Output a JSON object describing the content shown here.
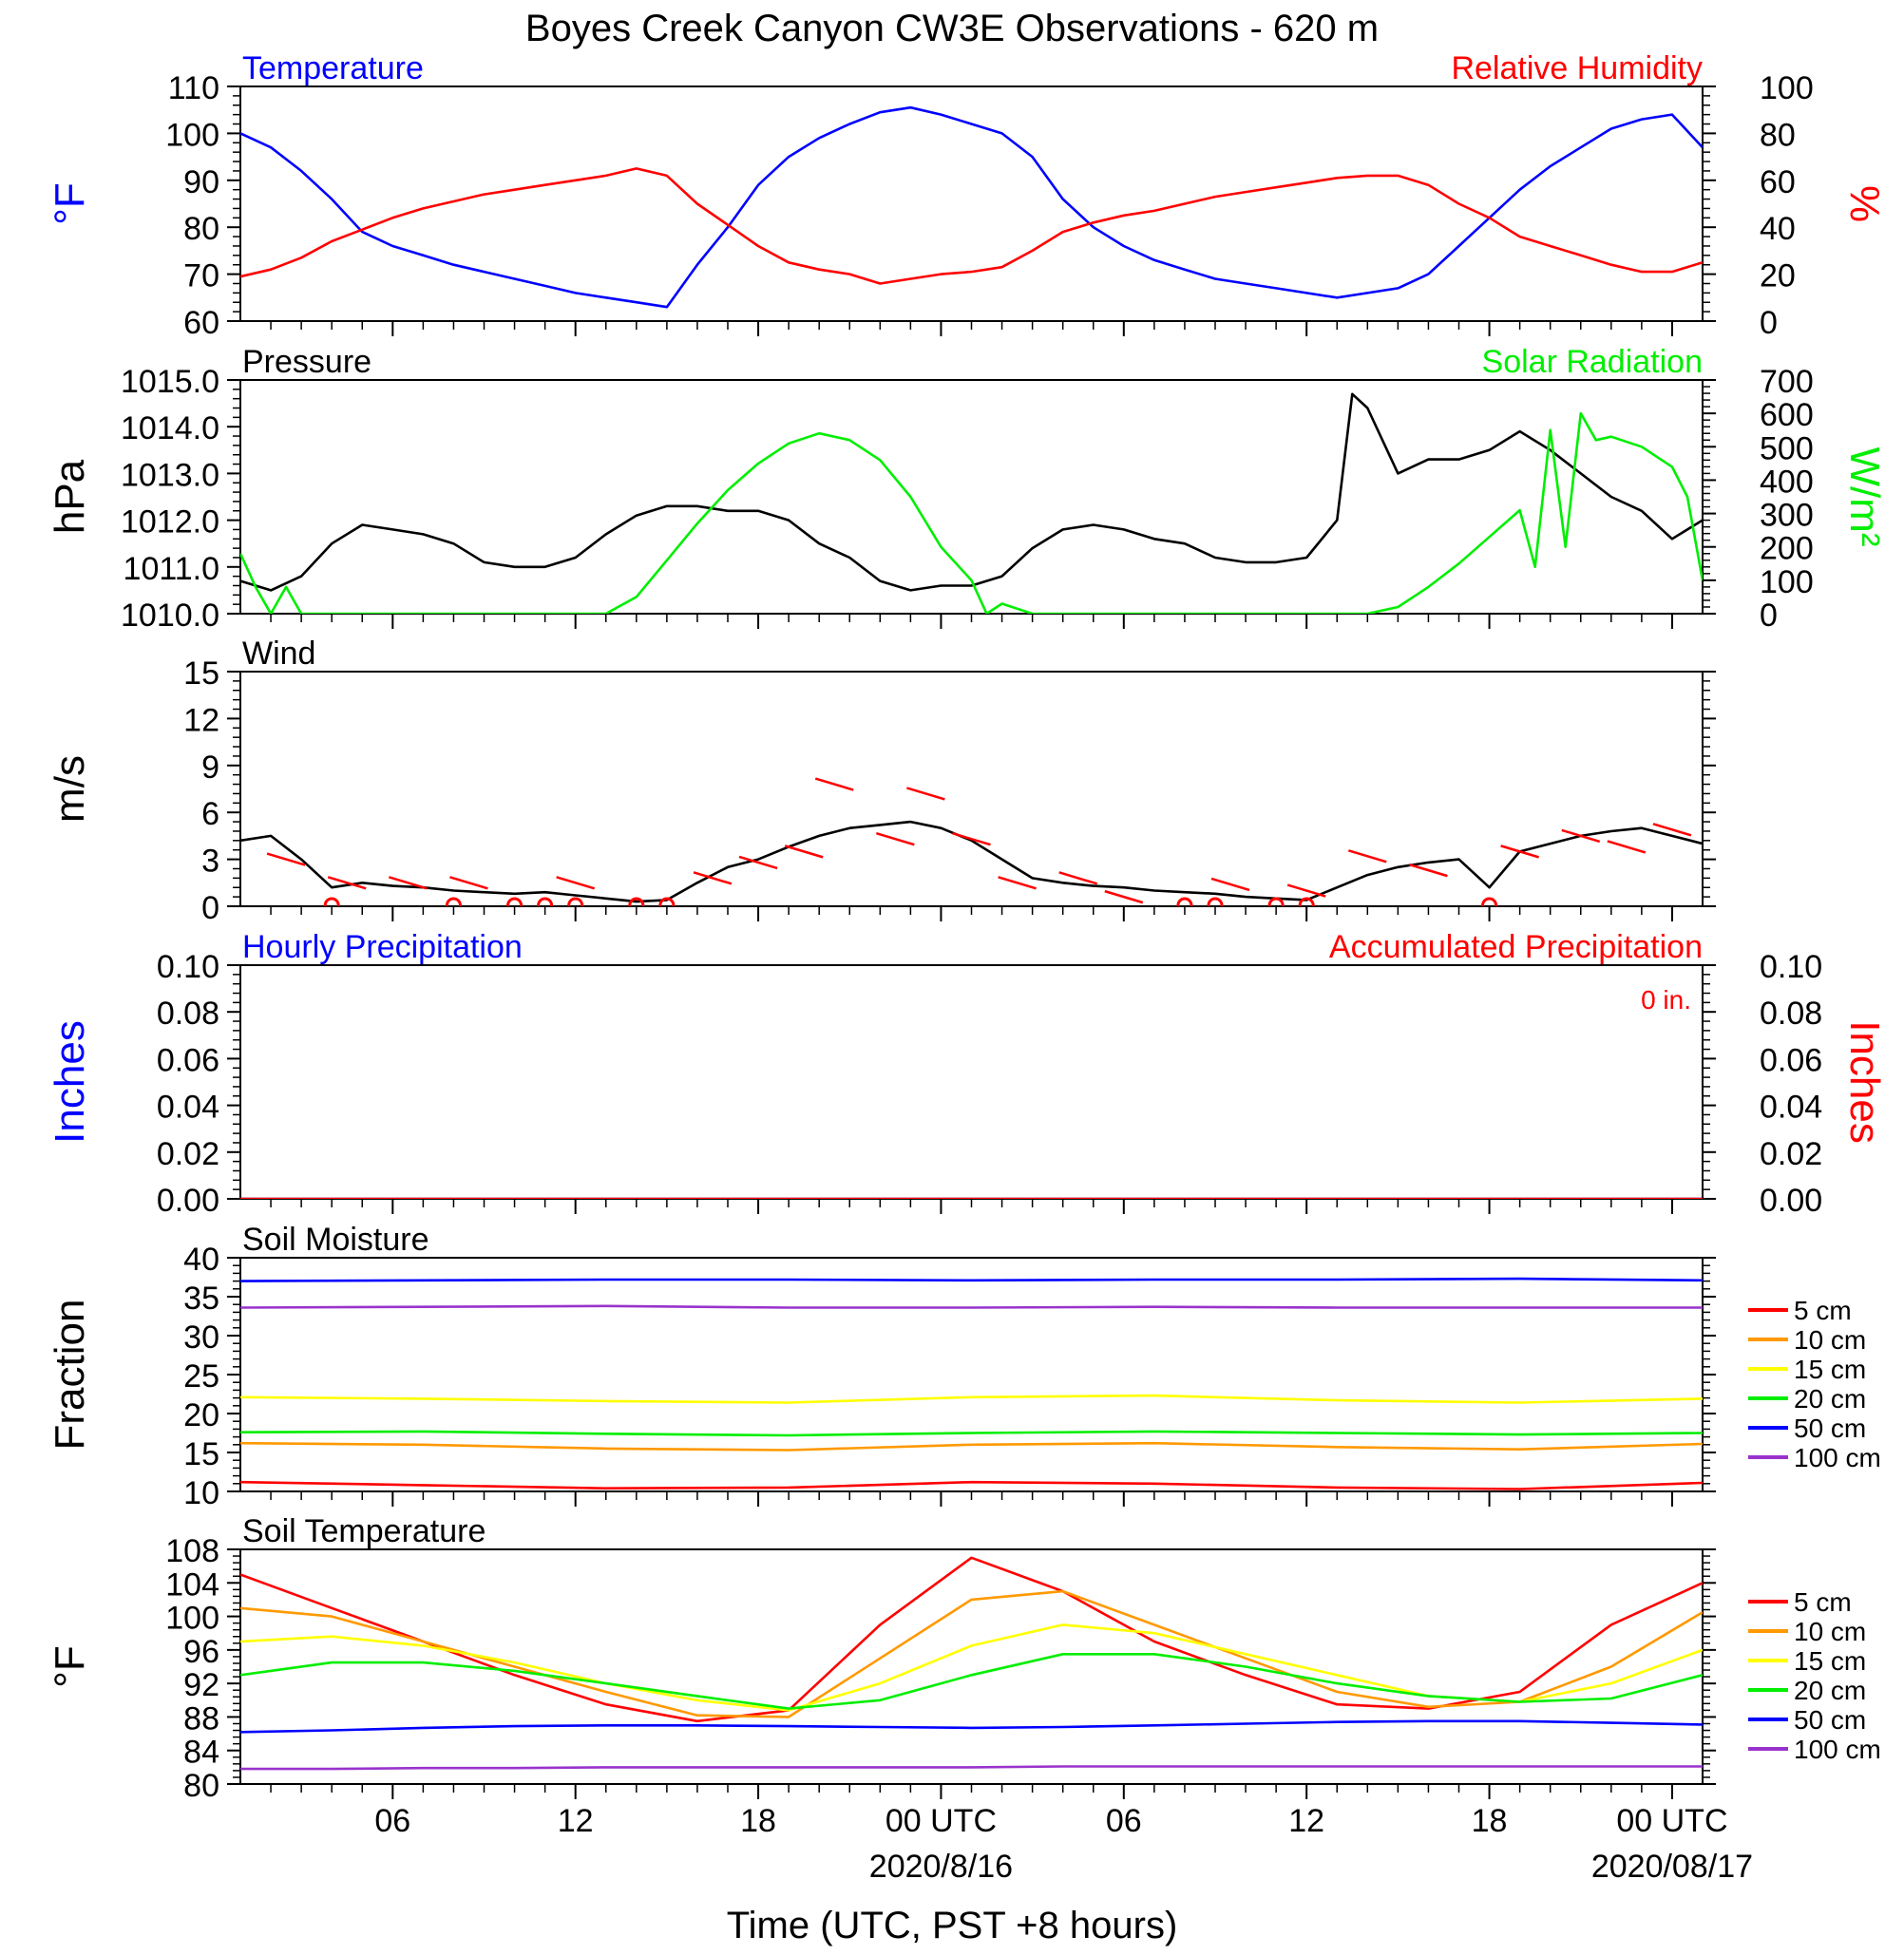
{
  "title": "Boyes Creek Canyon CW3E Observations - 620 m",
  "xaxis": {
    "label": "Time (UTC, PST +8 hours)",
    "tick_labels": [
      "06",
      "12",
      "18",
      "00 UTC",
      "06",
      "12",
      "18",
      "00 UTC"
    ],
    "tick_hours": [
      6,
      12,
      18,
      24,
      30,
      36,
      42,
      48
    ],
    "date_labels": [
      "2020/8/16",
      "2020/08/17"
    ],
    "range_hours": [
      1,
      49
    ]
  },
  "chart_data": [
    {
      "type": "line",
      "panel_titles": {
        "left": "Temperature",
        "right": "Relative Humidity"
      },
      "ylabel_left": "°F",
      "ylabel_right": "%",
      "ylim_left": [
        60,
        110
      ],
      "ylim_right": [
        0,
        100
      ],
      "yticks_left": [
        "60",
        "70",
        "80",
        "90",
        "100",
        "110"
      ],
      "yticks_right": [
        "0",
        "20",
        "40",
        "60",
        "80",
        "100"
      ],
      "series": [
        {
          "axis": "left",
          "color": "#0000ff",
          "x": [
            1,
            2,
            3,
            4,
            5,
            6,
            7,
            8,
            9,
            10,
            11,
            12,
            13,
            14,
            15,
            16,
            17,
            18,
            19,
            20,
            21,
            22,
            23,
            24,
            25,
            26,
            27,
            28,
            29,
            30,
            31,
            32,
            33,
            34,
            35,
            36,
            37,
            38,
            39,
            40,
            41,
            42,
            43,
            44,
            45,
            46,
            47,
            48,
            49
          ],
          "y": [
            100,
            97,
            92,
            86,
            79,
            76,
            74,
            72,
            70.5,
            69,
            67.5,
            66,
            65,
            64,
            63,
            72,
            80,
            89,
            95,
            99,
            102,
            104.5,
            105.5,
            104,
            102,
            100,
            95,
            86,
            80,
            76,
            73,
            71,
            69,
            68,
            67,
            66,
            65,
            66,
            67,
            70,
            76,
            82,
            88,
            93,
            97,
            101,
            103,
            104,
            97
          ]
        },
        {
          "axis": "right",
          "color": "#ff0000",
          "x": [
            1,
            2,
            3,
            4,
            5,
            6,
            7,
            8,
            9,
            10,
            11,
            12,
            13,
            14,
            15,
            16,
            17,
            18,
            19,
            20,
            21,
            22,
            23,
            24,
            25,
            26,
            27,
            28,
            29,
            30,
            31,
            32,
            33,
            34,
            35,
            36,
            37,
            38,
            39,
            40,
            41,
            42,
            43,
            44,
            45,
            46,
            47,
            48,
            49
          ],
          "y": [
            19,
            22,
            27,
            34,
            39,
            44,
            48,
            51,
            54,
            56,
            58,
            60,
            62,
            65,
            62,
            50,
            41,
            32,
            25,
            22,
            20,
            16,
            18,
            20,
            21,
            23,
            30,
            38,
            42,
            45,
            47,
            50,
            53,
            55,
            57,
            59,
            61,
            62,
            62,
            58,
            50,
            44,
            36,
            32,
            28,
            24,
            21,
            21,
            25
          ]
        }
      ]
    },
    {
      "type": "line",
      "panel_titles": {
        "left": "Pressure",
        "right": "Solar Radiation"
      },
      "ylabel_left": "hPa",
      "ylabel_right": "W/m²",
      "ylim_left": [
        1010,
        1015
      ],
      "ylim_right": [
        0,
        700
      ],
      "yticks_left": [
        "1010.0",
        "1011.0",
        "1012.0",
        "1013.0",
        "1014.0",
        "1015.0"
      ],
      "yticks_right": [
        "0",
        "100",
        "200",
        "300",
        "400",
        "500",
        "600",
        "700"
      ],
      "series": [
        {
          "axis": "left",
          "color": "#000000",
          "x": [
            1,
            2,
            3,
            4,
            5,
            6,
            7,
            8,
            9,
            10,
            11,
            12,
            13,
            14,
            15,
            16,
            17,
            18,
            19,
            20,
            21,
            22,
            23,
            24,
            25,
            26,
            27,
            28,
            29,
            30,
            31,
            32,
            33,
            34,
            35,
            36,
            37,
            37.5,
            38,
            39,
            40,
            41,
            42,
            43,
            44,
            45,
            46,
            47,
            48,
            49
          ],
          "y": [
            1010.7,
            1010.5,
            1010.8,
            1011.5,
            1011.9,
            1011.8,
            1011.7,
            1011.5,
            1011.1,
            1011.0,
            1011.0,
            1011.2,
            1011.7,
            1012.1,
            1012.3,
            1012.3,
            1012.2,
            1012.2,
            1012.0,
            1011.5,
            1011.2,
            1010.7,
            1010.5,
            1010.6,
            1010.6,
            1010.8,
            1011.4,
            1011.8,
            1011.9,
            1011.8,
            1011.6,
            1011.5,
            1011.2,
            1011.1,
            1011.1,
            1011.2,
            1012.0,
            1014.7,
            1014.4,
            1013.0,
            1013.3,
            1013.3,
            1013.5,
            1013.9,
            1013.5,
            1013.0,
            1012.5,
            1012.2,
            1011.6,
            1012.0
          ]
        },
        {
          "axis": "right",
          "color": "#00ee00",
          "x": [
            1,
            1.5,
            2,
            2.5,
            3,
            13,
            14,
            15,
            16,
            17,
            18,
            19,
            20,
            21,
            22,
            23,
            24,
            25,
            25.5,
            26,
            27,
            38,
            39,
            40,
            41,
            42,
            43,
            43.5,
            44,
            44.5,
            45,
            45.5,
            46,
            47,
            48,
            48.5,
            49
          ],
          "y": [
            180,
            80,
            0,
            80,
            0,
            0,
            50,
            160,
            270,
            370,
            450,
            510,
            540,
            520,
            460,
            350,
            200,
            100,
            0,
            30,
            0,
            0,
            20,
            80,
            150,
            230,
            310,
            140,
            550,
            200,
            600,
            520,
            530,
            500,
            440,
            350,
            100
          ]
        }
      ]
    },
    {
      "type": "line",
      "panel_titles": {
        "left": "Wind",
        "right": ""
      },
      "ylabel_left": "m/s",
      "ylim_left": [
        0,
        15
      ],
      "yticks_left": [
        "0",
        "3",
        "6",
        "9",
        "12",
        "15"
      ],
      "series": [
        {
          "axis": "left",
          "color": "#000000",
          "x": [
            1,
            2,
            3,
            4,
            5,
            6,
            7,
            8,
            9,
            10,
            11,
            12,
            13,
            14,
            15,
            16,
            17,
            18,
            19,
            20,
            21,
            22,
            23,
            24,
            25,
            26,
            27,
            28,
            29,
            30,
            31,
            32,
            33,
            34,
            35,
            36,
            37,
            38,
            39,
            40,
            41,
            42,
            43,
            44,
            45,
            46,
            47,
            48,
            49
          ],
          "y": [
            4.2,
            4.5,
            3.0,
            1.2,
            1.5,
            1.3,
            1.2,
            1.0,
            0.9,
            0.8,
            0.9,
            0.7,
            0.5,
            0.3,
            0.4,
            1.5,
            2.5,
            3.0,
            3.8,
            4.5,
            5.0,
            5.2,
            5.4,
            5.0,
            4.2,
            3.0,
            1.8,
            1.5,
            1.3,
            1.2,
            1.0,
            0.9,
            0.8,
            0.6,
            0.5,
            0.4,
            1.2,
            2.0,
            2.5,
            2.8,
            3.0,
            1.2,
            3.5,
            4.0,
            4.5,
            4.8,
            5.0,
            4.5,
            4.0
          ]
        }
      ],
      "calm_markers_hours": [
        4,
        8,
        10,
        11,
        12,
        14,
        15,
        32,
        33,
        35,
        36,
        42
      ],
      "barbs": [
        {
          "t": 2.5,
          "v": 3.0
        },
        {
          "t": 4.5,
          "v": 1.5
        },
        {
          "t": 6.5,
          "v": 1.5
        },
        {
          "t": 8.5,
          "v": 1.5
        },
        {
          "t": 12,
          "v": 1.5
        },
        {
          "t": 16.5,
          "v": 1.8
        },
        {
          "t": 18,
          "v": 2.8
        },
        {
          "t": 19.5,
          "v": 3.5
        },
        {
          "t": 20.5,
          "v": 7.8
        },
        {
          "t": 22.5,
          "v": 4.3
        },
        {
          "t": 23.5,
          "v": 7.2
        },
        {
          "t": 25,
          "v": 4.3
        },
        {
          "t": 26.5,
          "v": 1.5
        },
        {
          "t": 28.5,
          "v": 1.8
        },
        {
          "t": 30,
          "v": 0.6
        },
        {
          "t": 33.5,
          "v": 1.4
        },
        {
          "t": 36,
          "v": 1.0
        },
        {
          "t": 38,
          "v": 3.2
        },
        {
          "t": 40,
          "v": 2.3
        },
        {
          "t": 43,
          "v": 3.5
        },
        {
          "t": 45,
          "v": 4.5
        },
        {
          "t": 46.5,
          "v": 3.8
        },
        {
          "t": 48,
          "v": 4.9
        }
      ]
    },
    {
      "type": "line",
      "panel_titles": {
        "left": "Hourly Precipitation",
        "right": "Accumulated Precipitation"
      },
      "annotation": "0 in.",
      "ylabel_left": "Inches",
      "ylabel_right": "Inches",
      "ylim_left": [
        0,
        0.1
      ],
      "ylim_right": [
        0,
        0.1
      ],
      "yticks_left": [
        "0.00",
        "0.02",
        "0.04",
        "0.06",
        "0.08",
        "0.10"
      ],
      "yticks_right": [
        "0.00",
        "0.02",
        "0.04",
        "0.06",
        "0.08",
        "0.10"
      ],
      "series": [
        {
          "axis": "left",
          "color": "#0000ff",
          "x": [
            1,
            49
          ],
          "y": [
            0,
            0
          ]
        },
        {
          "axis": "right",
          "color": "#ff0000",
          "x": [
            1,
            49
          ],
          "y": [
            0,
            0
          ]
        }
      ]
    },
    {
      "type": "line",
      "panel_titles": {
        "left": "Soil Moisture",
        "right": ""
      },
      "ylabel_left": "Fraction",
      "ylim_left": [
        10,
        40
      ],
      "yticks_left": [
        "10",
        "15",
        "20",
        "25",
        "30",
        "35",
        "40"
      ],
      "x": [
        1,
        7,
        13,
        19,
        25,
        31,
        37,
        43,
        49
      ],
      "series": [
        {
          "name": "5 cm",
          "color": "#ff0000",
          "y": [
            11.2,
            10.8,
            10.4,
            10.5,
            11.2,
            11.0,
            10.5,
            10.3,
            11.1
          ]
        },
        {
          "name": "10 cm",
          "color": "#ff9900",
          "y": [
            16.2,
            16.0,
            15.5,
            15.3,
            16.0,
            16.2,
            15.7,
            15.4,
            16.1
          ]
        },
        {
          "name": "15 cm",
          "color": "#ffff00",
          "y": [
            22.1,
            21.9,
            21.6,
            21.4,
            22.1,
            22.3,
            21.7,
            21.4,
            21.9
          ]
        },
        {
          "name": "20 cm",
          "color": "#00ee00",
          "y": [
            17.6,
            17.7,
            17.4,
            17.2,
            17.5,
            17.7,
            17.5,
            17.3,
            17.5
          ]
        },
        {
          "name": "50 cm",
          "color": "#0000ff",
          "y": [
            37.0,
            37.1,
            37.2,
            37.2,
            37.1,
            37.2,
            37.2,
            37.3,
            37.1
          ]
        },
        {
          "name": "100 cm",
          "color": "#9933cc",
          "y": [
            33.6,
            33.7,
            33.8,
            33.6,
            33.6,
            33.7,
            33.6,
            33.6,
            33.6
          ]
        }
      ]
    },
    {
      "type": "line",
      "panel_titles": {
        "left": "Soil Temperature",
        "right": ""
      },
      "ylabel_left": "°F",
      "ylim_left": [
        80,
        108
      ],
      "yticks_left": [
        "80",
        "84",
        "88",
        "92",
        "96",
        "100",
        "104",
        "108"
      ],
      "x": [
        1,
        4,
        7,
        10,
        13,
        16,
        19,
        22,
        25,
        28,
        31,
        34,
        37,
        40,
        43,
        46,
        49
      ],
      "series": [
        {
          "name": "5 cm",
          "color": "#ff0000",
          "y": [
            105,
            101,
            97,
            93,
            89.5,
            87.5,
            88.8,
            99,
            107,
            103,
            97,
            93,
            89.5,
            89,
            91,
            99,
            104
          ]
        },
        {
          "name": "10 cm",
          "color": "#ff9900",
          "y": [
            101,
            100,
            97,
            94,
            91,
            88.2,
            88,
            95,
            102,
            103,
            99,
            95,
            91,
            89.2,
            89.8,
            94,
            100.5
          ]
        },
        {
          "name": "15 cm",
          "color": "#ffff00",
          "y": [
            97,
            97.6,
            96.5,
            94.5,
            92,
            90,
            88.8,
            92,
            96.5,
            99,
            98,
            95.5,
            93,
            90.5,
            89.8,
            92,
            96
          ]
        },
        {
          "name": "20 cm",
          "color": "#00ee00",
          "y": [
            93,
            94.5,
            94.5,
            93.5,
            92,
            90.5,
            89,
            90,
            93,
            95.5,
            95.5,
            94,
            92,
            90.5,
            89.8,
            90.2,
            93
          ]
        },
        {
          "name": "50 cm",
          "color": "#0000ff",
          "y": [
            86.2,
            86.4,
            86.7,
            86.9,
            87,
            87,
            86.9,
            86.8,
            86.7,
            86.8,
            87,
            87.2,
            87.4,
            87.5,
            87.5,
            87.3,
            87.1
          ]
        },
        {
          "name": "100 cm",
          "color": "#9933cc",
          "y": [
            81.8,
            81.8,
            81.9,
            81.9,
            82,
            82,
            82,
            82,
            82,
            82.1,
            82.1,
            82.1,
            82.1,
            82.1,
            82.1,
            82.1,
            82.1
          ]
        }
      ]
    }
  ]
}
